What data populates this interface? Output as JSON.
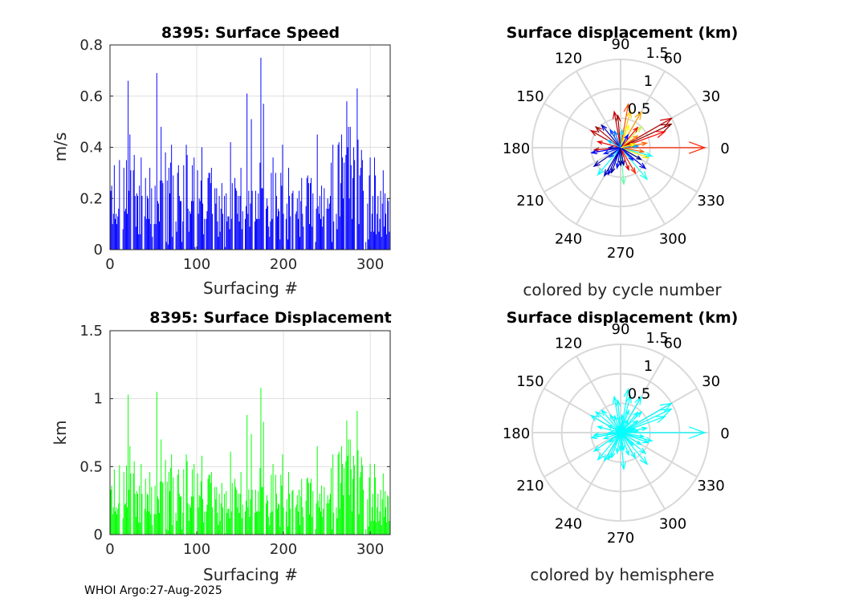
{
  "footer": "WHOI Argo:27-Aug-2025",
  "chart_data": [
    {
      "type": "bar",
      "title": "8395: Surface Speed",
      "xlabel": "Surfacing #",
      "ylabel": "m/s",
      "xlim": [
        0,
        323
      ],
      "ylim": [
        0,
        0.8
      ],
      "xticks": [
        "0",
        "100",
        "200",
        "300"
      ],
      "yticks": [
        "0",
        "0.2",
        "0.4",
        "0.6",
        "0.8"
      ],
      "grid": true,
      "color": "#0000ff",
      "x_start": 1,
      "values": [
        0.23,
        0.25,
        0.1,
        0.14,
        0.33,
        0.12,
        0.14,
        0.1,
        0.13,
        0.16,
        0.35,
        0,
        0,
        0,
        0.08,
        0.32,
        0.15,
        0.16,
        0.35,
        0.14,
        0.66,
        0.23,
        0.45,
        0.31,
        0,
        0,
        0.31,
        0.37,
        0.21,
        0.09,
        0.22,
        0.21,
        0.06,
        0.25,
        0.06,
        0.36,
        0.21,
        0,
        0,
        0.13,
        0.28,
        0.12,
        0.21,
        0.2,
        0.12,
        0.32,
        0.1,
        0.24,
        0.05,
        0,
        0.1,
        0.25,
        0.1,
        0.69,
        0.19,
        0.18,
        0.11,
        0.27,
        0.48,
        0.27,
        0.26,
        0,
        0,
        0.38,
        0.03,
        0.27,
        0.02,
        0.32,
        0.22,
        0.34,
        0.41,
        0.05,
        0.29,
        0,
        0,
        0.11,
        0.07,
        0.3,
        0.33,
        0.21,
        0.19,
        0.19,
        0.03,
        0.11,
        0.33,
        0,
        0,
        0.41,
        0.37,
        0.16,
        0.07,
        0.15,
        0.14,
        0.19,
        0.33,
        0.19,
        0.36,
        0.01,
        0,
        0,
        0.31,
        0.14,
        0.2,
        0.19,
        0.27,
        0.4,
        0.18,
        0.06,
        0.12,
        0,
        0.12,
        0.15,
        0.28,
        0.3,
        0.3,
        0.26,
        0.32,
        0.14,
        0,
        0,
        0.24,
        0.18,
        0.24,
        0.11,
        0.05,
        0.21,
        0.07,
        0.16,
        0.26,
        0.14,
        0,
        0.21,
        0.01,
        0.22,
        0.11,
        0.13,
        0.13,
        0.08,
        0.42,
        0.12,
        0.26,
        0,
        0,
        0.28,
        0.24,
        0.23,
        0.14,
        0.21,
        0.11,
        0.21,
        0.32,
        0.08,
        0.15,
        0,
        0,
        0.12,
        0.17,
        0.61,
        0.14,
        0.23,
        0.09,
        0.18,
        0.51,
        0.23,
        0,
        0,
        0.11,
        0.23,
        0.12,
        0.12,
        0.22,
        0.12,
        0.34,
        0.75,
        0.24,
        0.24,
        0.57,
        0,
        0,
        0.16,
        0.2,
        0.17,
        0.09,
        0.05,
        0.11,
        0.3,
        0.12,
        0.36,
        0,
        0,
        0.3,
        0.21,
        0.13,
        0.16,
        0.15,
        0.04,
        0.3,
        0.25,
        0.41,
        0.14,
        0,
        0,
        0.12,
        0.18,
        0.04,
        0.32,
        0.21,
        0.13,
        0,
        0.22,
        0.23,
        0,
        0,
        0.14,
        0.15,
        0.2,
        0.12,
        0.23,
        0.05,
        0.19,
        0.28,
        0.14,
        0.09,
        0,
        0,
        0.17,
        0.28,
        0.29,
        0.26,
        0.1,
        0.26,
        0.28,
        0.09,
        0.22,
        0,
        0,
        0.03,
        0.16,
        0.45,
        0.17,
        0.14,
        0.21,
        0.12,
        0.25,
        0.09,
        0.13,
        0.24,
        0,
        0,
        0.16,
        0.2,
        0.16,
        0.18,
        0.21,
        0.34,
        0.03,
        0.41,
        0.11,
        0,
        0,
        0.14,
        0.08,
        0.41,
        0.42,
        0.13,
        0.26,
        0.45,
        0.36,
        0.2,
        0.34,
        0,
        0.37,
        0.58,
        0.4,
        0.48,
        0.2,
        0.48,
        0.33,
        0.12,
        0.28,
        0.4,
        0.35,
        0,
        0,
        0.63,
        0.43,
        0.1,
        0.29,
        0.32,
        0.39,
        0.35,
        0.23,
        0,
        0,
        0.03,
        0,
        0.18,
        0.04,
        0.29,
        0.36,
        0.07,
        0.14,
        0.21,
        0.07,
        0.36,
        0.29,
        0.06,
        0.14,
        0.21,
        0.07,
        0.12,
        0.23,
        0.05,
        0.18,
        0.31,
        0.09,
        0.22,
        0.14,
        0.06,
        0.2,
        0.19,
        0.07
      ]
    },
    {
      "type": "bar",
      "title": "8395: Surface Displacement",
      "xlabel": "Surfacing #",
      "ylabel": "km",
      "xlim": [
        0,
        323
      ],
      "ylim": [
        0,
        1.5
      ],
      "xticks": [
        "0",
        "100",
        "200",
        "300"
      ],
      "yticks": [
        "0",
        "0.5",
        "1",
        "1.5"
      ],
      "grid": true,
      "color": "#00ff00",
      "x_start": 1,
      "values": [
        0.33,
        0.36,
        0.15,
        0.2,
        0.48,
        0.17,
        0.2,
        0.15,
        0.19,
        0.23,
        0.51,
        0,
        0,
        0,
        0.12,
        0.46,
        0.22,
        0.23,
        0.51,
        0.2,
        1.03,
        0.33,
        0.65,
        0.45,
        0,
        0,
        0.45,
        0.54,
        0.3,
        0.13,
        0.32,
        0.3,
        0.09,
        0.36,
        0.09,
        0.52,
        0.3,
        0,
        0,
        0.19,
        0.41,
        0.17,
        0.3,
        0.29,
        0.17,
        0.46,
        0.15,
        0.35,
        0.07,
        0,
        0.15,
        0.36,
        0.15,
        1.05,
        0.28,
        0.26,
        0.16,
        0.39,
        0.7,
        0.39,
        0.38,
        0,
        0,
        0.55,
        0.04,
        0.39,
        0.03,
        0.46,
        0.32,
        0.49,
        0.59,
        0.07,
        0.42,
        0,
        0,
        0.16,
        0.1,
        0.44,
        0.48,
        0.3,
        0.28,
        0.28,
        0.04,
        0.16,
        0.48,
        0,
        0,
        0.59,
        0.54,
        0.23,
        0.1,
        0.22,
        0.2,
        0.28,
        0.48,
        0.28,
        0.52,
        0.01,
        0,
        0,
        0.45,
        0.2,
        0.29,
        0.28,
        0.39,
        0.58,
        0.26,
        0.09,
        0.17,
        0,
        0.17,
        0.22,
        0.41,
        0.44,
        0.44,
        0.38,
        0.46,
        0.2,
        0,
        0,
        0.35,
        0.26,
        0.35,
        0.16,
        0.07,
        0.3,
        0.1,
        0.23,
        0.38,
        0.2,
        0,
        0.3,
        0.01,
        0.32,
        0.16,
        0.19,
        0.19,
        0.12,
        0.61,
        0.17,
        0.38,
        0,
        0,
        0.41,
        0.35,
        0.33,
        0.2,
        0.3,
        0.16,
        0.3,
        0.46,
        0.12,
        0.22,
        0,
        0,
        0.17,
        0.25,
        0.88,
        0.2,
        0.33,
        0.13,
        0.26,
        0.74,
        0.33,
        0,
        0,
        0.16,
        0.33,
        0.17,
        0.17,
        0.32,
        0.17,
        0.49,
        1.08,
        0.35,
        0.35,
        0.83,
        0,
        0,
        0.23,
        0.29,
        0.25,
        0.13,
        0.07,
        0.16,
        0.44,
        0.17,
        0.52,
        0,
        0,
        0.44,
        0.3,
        0.19,
        0.23,
        0.22,
        0.06,
        0.44,
        0.36,
        0.59,
        0.2,
        0,
        0,
        0.17,
        0.26,
        0.06,
        0.46,
        0.3,
        0.19,
        0,
        0.32,
        0.33,
        0,
        0,
        0.2,
        0.22,
        0.29,
        0.17,
        0.33,
        0.07,
        0.28,
        0.41,
        0.2,
        0.13,
        0,
        0,
        0.25,
        0.41,
        0.42,
        0.38,
        0.15,
        0.38,
        0.41,
        0.13,
        0.32,
        0,
        0,
        0.04,
        0.23,
        0.65,
        0.25,
        0.2,
        0.3,
        0.17,
        0.36,
        0.13,
        0.19,
        0.35,
        0,
        0,
        0.23,
        0.29,
        0.23,
        0.26,
        0.3,
        0.49,
        0.04,
        0.59,
        0.16,
        0,
        0,
        0.2,
        0.12,
        0.59,
        0.61,
        0.19,
        0.38,
        0.65,
        0.52,
        0.29,
        0.49,
        0,
        0.54,
        0.84,
        0.58,
        0.7,
        0.29,
        0.7,
        0.48,
        0.17,
        0.41,
        0.58,
        0.51,
        0,
        0,
        0.91,
        0.62,
        0.15,
        0.42,
        0.46,
        0.57,
        0.51,
        0.33,
        0,
        0,
        0.04,
        0,
        0.26,
        0.06,
        0.42,
        0.52,
        0.1,
        0.2,
        0.3,
        0.1,
        0.52,
        0.42,
        0.09,
        0.2,
        0.3,
        0.1,
        0.17,
        0.33,
        0.07,
        0.26,
        0.45,
        0.13,
        0.32,
        0.2,
        0.09,
        0.29,
        0.28,
        0.1
      ]
    },
    {
      "type": "polar-compass",
      "title": "Surface displacement (km)",
      "subtitle": "colored by cycle number",
      "rlim": [
        0,
        1.5
      ],
      "rticks": [
        "0.5",
        "1",
        "1.5"
      ],
      "angle_ticks": [
        "0",
        "30",
        "60",
        "90",
        "120",
        "150",
        "180",
        "210",
        "240",
        "270",
        "300",
        "330"
      ],
      "color_mode": "jet-by-cycle",
      "max_cycle": 322,
      "arrows": [
        {
          "angle": 0,
          "r": 1.43,
          "cycle": 270
        },
        {
          "angle": 30,
          "r": 1.0,
          "cycle": 300
        },
        {
          "angle": 25,
          "r": 0.95,
          "cycle": 320
        },
        {
          "angle": 20,
          "r": 0.8,
          "cycle": 280
        },
        {
          "angle": 80,
          "r": 0.75,
          "cycle": 260
        },
        {
          "angle": 75,
          "r": 0.65,
          "cycle": 220
        },
        {
          "angle": 60,
          "r": 0.7,
          "cycle": 230
        },
        {
          "angle": 100,
          "r": 0.62,
          "cycle": 300
        },
        {
          "angle": 95,
          "r": 0.55,
          "cycle": 310
        },
        {
          "angle": 140,
          "r": 0.55,
          "cycle": 310
        },
        {
          "angle": 150,
          "r": 0.58,
          "cycle": 300
        },
        {
          "angle": 130,
          "r": 0.5,
          "cycle": 20
        },
        {
          "angle": 165,
          "r": 0.4,
          "cycle": 290
        },
        {
          "angle": 185,
          "r": 0.45,
          "cycle": 300
        },
        {
          "angle": 190,
          "r": 0.5,
          "cycle": 40
        },
        {
          "angle": 215,
          "r": 0.55,
          "cycle": 10
        },
        {
          "angle": 230,
          "r": 0.6,
          "cycle": 120
        },
        {
          "angle": 240,
          "r": 0.55,
          "cycle": 20
        },
        {
          "angle": 245,
          "r": 0.5,
          "cycle": 30
        },
        {
          "angle": 275,
          "r": 0.62,
          "cycle": 150
        },
        {
          "angle": 310,
          "r": 0.7,
          "cycle": 130
        },
        {
          "angle": 320,
          "r": 0.55,
          "cycle": 30
        },
        {
          "angle": 300,
          "r": 0.5,
          "cycle": 270
        },
        {
          "angle": 340,
          "r": 0.5,
          "cycle": 210
        },
        {
          "angle": 345,
          "r": 0.55,
          "cycle": 120
        },
        {
          "angle": 350,
          "r": 0.4,
          "cycle": 250
        },
        {
          "angle": 10,
          "r": 0.45,
          "cycle": 250
        },
        {
          "angle": 45,
          "r": 0.5,
          "cycle": 180
        },
        {
          "angle": 50,
          "r": 0.45,
          "cycle": 280
        },
        {
          "angle": 70,
          "r": 0.4,
          "cycle": 200
        },
        {
          "angle": 110,
          "r": 0.3,
          "cycle": 80
        },
        {
          "angle": 120,
          "r": 0.35,
          "cycle": 60
        },
        {
          "angle": 200,
          "r": 0.3,
          "cycle": 50
        },
        {
          "angle": 260,
          "r": 0.35,
          "cycle": 40
        },
        {
          "angle": 280,
          "r": 0.3,
          "cycle": 15
        },
        {
          "angle": 290,
          "r": 0.4,
          "cycle": 290
        },
        {
          "angle": 330,
          "r": 0.4,
          "cycle": 5
        },
        {
          "angle": 5,
          "r": 0.3,
          "cycle": 90
        },
        {
          "angle": 35,
          "r": 0.35,
          "cycle": 240
        },
        {
          "angle": 85,
          "r": 0.3,
          "cycle": 110
        },
        {
          "angle": 150,
          "r": 0.25,
          "cycle": 100
        },
        {
          "angle": 220,
          "r": 0.25,
          "cycle": 60
        },
        {
          "angle": 250,
          "r": 0.45,
          "cycle": 10
        },
        {
          "angle": 270,
          "r": 0.3,
          "cycle": 5
        },
        {
          "angle": 315,
          "r": 0.3,
          "cycle": 50
        },
        {
          "angle": 60,
          "r": 0.25,
          "cycle": 40
        },
        {
          "angle": 180,
          "r": 0.2,
          "cycle": 20
        },
        {
          "angle": 15,
          "r": 0.25,
          "cycle": 200
        }
      ]
    },
    {
      "type": "polar-compass",
      "title": "Surface displacement (km)",
      "subtitle": "colored by hemisphere",
      "rlim": [
        0,
        1.5
      ],
      "rticks": [
        "0.5",
        "1",
        "1.5"
      ],
      "angle_ticks": [
        "0",
        "30",
        "60",
        "90",
        "120",
        "150",
        "180",
        "210",
        "240",
        "270",
        "300",
        "330"
      ],
      "color_mode": "single",
      "color": "#00ffff",
      "arrows_same_as": "colored by cycle number"
    }
  ]
}
